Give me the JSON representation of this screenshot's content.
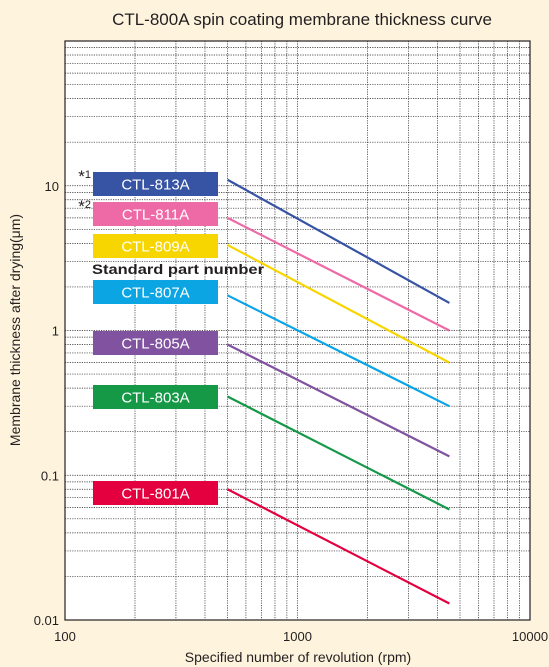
{
  "chart_data": {
    "type": "line",
    "title": "CTL-800A spin coating membrane thickness curve",
    "xlabel": "Specified number of revolution (rpm)",
    "ylabel": "Membrane thickness after drying(μm)",
    "x_scale": "log",
    "y_scale": "log",
    "xlim": [
      100,
      10000
    ],
    "ylim": [
      0.01,
      100
    ],
    "x_ticks": [
      {
        "value": 100,
        "label": "100"
      },
      {
        "value": 1000,
        "label": "1000"
      },
      {
        "value": 10000,
        "label": "10000"
      }
    ],
    "y_ticks": [
      {
        "value": 0.01,
        "label": "0.01"
      },
      {
        "value": 0.1,
        "label": "0.1"
      },
      {
        "value": 1,
        "label": "1"
      },
      {
        "value": 10,
        "label": "10"
      }
    ],
    "grid": true,
    "series": [
      {
        "name": "CTL-813A",
        "color": "#3653a4",
        "x": [
          500,
          4500
        ],
        "y": [
          11,
          1.55
        ],
        "note": "*1"
      },
      {
        "name": "CTL-811A",
        "color": "#ee6aa7",
        "x": [
          500,
          4500
        ],
        "y": [
          6,
          1.0
        ],
        "note": "*2"
      },
      {
        "name": "CTL-809A",
        "color": "#f7d600",
        "x": [
          500,
          4500
        ],
        "y": [
          3.9,
          0.6
        ]
      },
      {
        "name": "CTL-807A",
        "color": "#0aa5e2",
        "x": [
          500,
          4500
        ],
        "y": [
          1.75,
          0.3
        ]
      },
      {
        "name": "CTL-805A",
        "color": "#8052a0",
        "x": [
          500,
          4500
        ],
        "y": [
          0.8,
          0.135
        ]
      },
      {
        "name": "CTL-803A",
        "color": "#159947",
        "x": [
          500,
          4500
        ],
        "y": [
          0.35,
          0.058
        ]
      },
      {
        "name": "CTL-801A",
        "color": "#e4003f",
        "x": [
          500,
          4500
        ],
        "y": [
          0.08,
          0.013
        ]
      }
    ],
    "annotations": [
      {
        "text": "Standard part number"
      }
    ]
  },
  "colors": {
    "background": "#fef4de",
    "plot_background": "#ffffff",
    "grid": "#231f20"
  }
}
